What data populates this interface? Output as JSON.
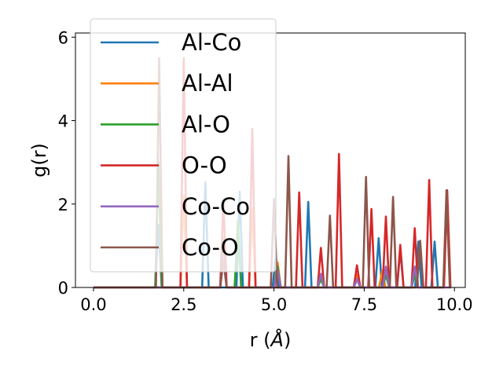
{
  "chart_data": {
    "type": "line",
    "xlabel": "r (",
    "xlabel_unit": "Å",
    "xlabel_close": ")",
    "ylabel": "g(r)",
    "xlim": [
      -0.5,
      10.3
    ],
    "ylim": [
      0,
      6.1
    ],
    "xticks": [
      0.0,
      2.5,
      5.0,
      7.5,
      10.0
    ],
    "xtick_labels": [
      "0.0",
      "2.5",
      "5.0",
      "7.5",
      "10.0"
    ],
    "yticks": [
      0,
      2,
      4,
      6
    ],
    "ytick_labels": [
      "0",
      "2",
      "4",
      "6"
    ],
    "grid": false,
    "legend_position": "top-left",
    "peak_half_width": 0.09,
    "series": [
      {
        "name": "Al-Co",
        "color": "#1f77b4",
        "rmax": 9.6,
        "peaks": [
          [
            1.8,
            1.5
          ],
          [
            3.1,
            2.52
          ],
          [
            4.05,
            2.3
          ],
          [
            5.05,
            0.75
          ],
          [
            5.95,
            2.05
          ],
          [
            7.9,
            1.18
          ],
          [
            8.5,
            0.9
          ],
          [
            9.0,
            1.1
          ],
          [
            9.45,
            1.1
          ]
        ]
      },
      {
        "name": "Al-Al",
        "color": "#ff7f0e",
        "rmax": 9.6,
        "peaks": [
          [
            2.5,
            2.2
          ],
          [
            3.6,
            1.0
          ],
          [
            4.4,
            1.9
          ],
          [
            5.1,
            0.6
          ],
          [
            6.3,
            0.3
          ],
          [
            7.3,
            0.3
          ],
          [
            8.0,
            0.4
          ],
          [
            8.9,
            0.4
          ]
        ]
      },
      {
        "name": "Al-O",
        "color": "#2ca02c",
        "rmax": 9.6,
        "peaks": [
          [
            1.8,
            3.0
          ],
          [
            3.6,
            1.2
          ],
          [
            4.0,
            1.6
          ],
          [
            5.1,
            0.5
          ],
          [
            6.3,
            0.2
          ],
          [
            7.3,
            0.2
          ],
          [
            8.1,
            0.3
          ],
          [
            8.9,
            0.3
          ]
        ]
      },
      {
        "name": "O-O",
        "color": "#d62728",
        "rmax": 9.9,
        "peaks": [
          [
            2.5,
            5.5
          ],
          [
            3.6,
            2.1
          ],
          [
            4.4,
            3.8
          ],
          [
            5.7,
            2.28
          ],
          [
            6.3,
            0.95
          ],
          [
            6.8,
            3.2
          ],
          [
            7.3,
            0.53
          ],
          [
            7.7,
            1.88
          ],
          [
            8.1,
            1.7
          ],
          [
            8.5,
            1.02
          ],
          [
            8.9,
            1.42
          ],
          [
            9.3,
            2.58
          ],
          [
            9.8,
            2.33
          ]
        ]
      },
      {
        "name": "Co-Co",
        "color": "#9467bd",
        "rmax": 9.9,
        "peaks": [
          [
            3.6,
            0.75
          ],
          [
            5.1,
            0.42
          ],
          [
            6.3,
            0.33
          ],
          [
            7.3,
            0.2
          ],
          [
            8.1,
            0.5
          ],
          [
            8.9,
            0.5
          ]
        ]
      },
      {
        "name": "Co-O",
        "color": "#8c564b",
        "rmax": 9.9,
        "peaks": [
          [
            1.82,
            5.5
          ],
          [
            3.6,
            0.65
          ],
          [
            5.0,
            2.12
          ],
          [
            5.4,
            3.15
          ],
          [
            6.55,
            1.72
          ],
          [
            7.55,
            2.65
          ],
          [
            8.3,
            2.17
          ],
          [
            9.05,
            1.12
          ],
          [
            9.78,
            2.33
          ]
        ]
      }
    ]
  }
}
